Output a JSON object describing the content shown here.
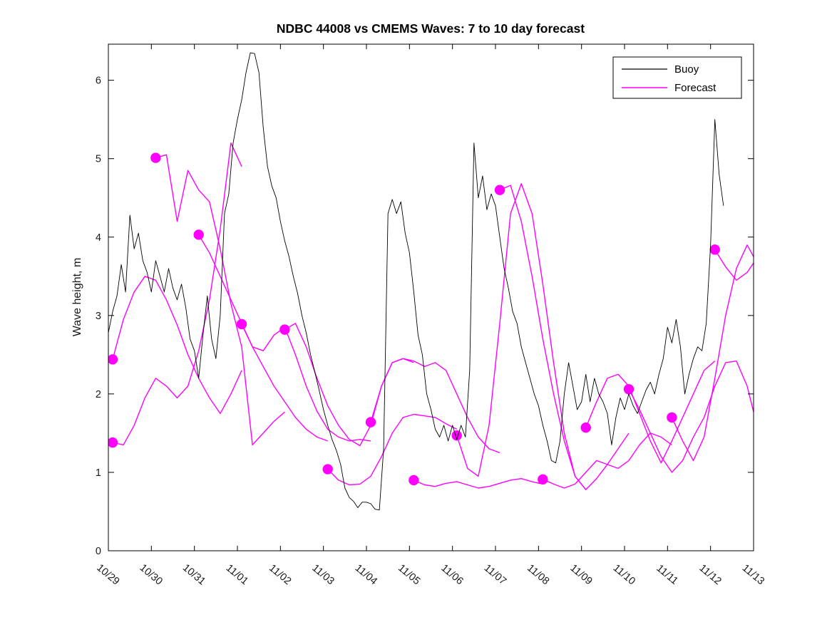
{
  "title": "NDBC 44008 vs CMEMS Waves: 7 to 10 day forecast",
  "axes": {
    "ylabel": "Wave height, m",
    "xtick_labels": [
      "10/29",
      "10/30",
      "10/31",
      "11/01",
      "11/02",
      "11/03",
      "11/04",
      "11/05",
      "11/06",
      "11/07",
      "11/08",
      "11/09",
      "11/10",
      "11/11",
      "11/12",
      "11/13"
    ],
    "ytick_labels": [
      "0",
      "1",
      "2",
      "3",
      "4",
      "5",
      "6"
    ]
  },
  "legend": {
    "entries": [
      {
        "label": "Buoy",
        "color": "#000000"
      },
      {
        "label": "Forecast",
        "color": "#ff00ff"
      }
    ],
    "position": "northeast"
  },
  "colors": {
    "buoy_line": "#000000",
    "forecast_line": "#ff00ff",
    "forecast_marker": "#ff00ff",
    "axis": "#000000",
    "background": "#ffffff"
  },
  "chart_data": {
    "type": "line",
    "title": "NDBC 44008 vs CMEMS Waves: 7 to 10 day forecast",
    "xlabel": "",
    "ylabel": "Wave height, m",
    "x_axis": {
      "unit": "date (MM/DD)",
      "tick_days": [
        0,
        1,
        2,
        3,
        4,
        5,
        6,
        7,
        8,
        9,
        10,
        11,
        12,
        13,
        14,
        15
      ],
      "tick_labels": [
        "10/29",
        "10/30",
        "10/31",
        "11/01",
        "11/02",
        "11/03",
        "11/04",
        "11/05",
        "11/06",
        "11/07",
        "11/08",
        "11/09",
        "11/10",
        "11/11",
        "11/12",
        "11/13"
      ],
      "xlim_days": [
        0,
        15.08
      ]
    },
    "ylim": [
      0,
      6.46
    ],
    "yticks": [
      0,
      1,
      2,
      3,
      4,
      5,
      6
    ],
    "grid": false,
    "legend_position": "northeast",
    "series_buoy": {
      "name": "Buoy",
      "color": "#000000",
      "t0": 0.0,
      "dt": 0.1,
      "values": [
        2.78,
        3.05,
        3.25,
        3.65,
        3.3,
        4.28,
        3.85,
        4.05,
        3.7,
        3.55,
        3.3,
        3.7,
        3.5,
        3.3,
        3.6,
        3.35,
        3.2,
        3.4,
        3.1,
        2.7,
        2.55,
        2.2,
        2.75,
        3.25,
        2.7,
        2.45,
        3.0,
        4.3,
        4.55,
        5.2,
        5.5,
        5.75,
        6.1,
        6.35,
        6.34,
        6.1,
        5.4,
        4.9,
        4.65,
        4.5,
        4.2,
        3.95,
        3.75,
        3.5,
        3.28,
        3.0,
        2.78,
        2.5,
        2.28,
        2.05,
        1.8,
        1.6,
        1.42,
        1.28,
        1.1,
        0.8,
        0.68,
        0.63,
        0.55,
        0.62,
        0.62,
        0.6,
        0.53,
        0.52,
        1.3,
        4.3,
        4.48,
        4.3,
        4.45,
        4.05,
        3.8,
        3.3,
        2.75,
        2.5,
        2.0,
        1.8,
        1.55,
        1.45,
        1.6,
        1.4,
        1.6,
        1.42,
        1.6,
        1.45,
        2.3,
        5.2,
        4.5,
        4.78,
        4.35,
        4.55,
        4.4,
        4.0,
        3.6,
        3.35,
        3.05,
        2.9,
        2.6,
        2.4,
        2.2,
        2.0,
        1.85,
        1.6,
        1.4,
        1.15,
        1.12,
        1.4,
        2.0,
        2.4,
        2.1,
        1.8,
        1.9,
        2.25,
        1.9,
        2.2,
        2.0,
        1.9,
        1.75,
        1.35,
        1.7,
        1.95,
        1.8,
        2.0,
        1.85,
        1.75,
        1.9,
        2.05,
        2.15,
        2.0,
        2.25,
        2.45,
        2.85,
        2.65,
        2.95,
        2.6,
        2.0,
        2.25,
        2.45,
        2.6,
        2.55,
        2.9,
        3.9,
        5.5,
        4.8,
        4.4
      ]
    },
    "forecast_runs": [
      {
        "start_label": "10/29",
        "start_day": 0.1,
        "dt": 0.25,
        "start_value": 2.44,
        "values": [
          2.44,
          2.95,
          3.3,
          3.5,
          3.45,
          3.2,
          2.88,
          2.5,
          2.2,
          1.95,
          1.75,
          2.0,
          2.3
        ]
      },
      {
        "start_label": "10/29",
        "start_day": 0.1,
        "dt": 0.25,
        "start_value": 1.38,
        "values": [
          1.38,
          1.35,
          1.6,
          1.95,
          2.2,
          2.1,
          1.95,
          2.1,
          2.55,
          3.2,
          4.1,
          5.2,
          4.9
        ]
      },
      {
        "start_label": "10/30",
        "start_day": 1.1,
        "dt": 0.25,
        "start_value": 5.01,
        "values": [
          5.01,
          5.05,
          4.2,
          4.85,
          4.6,
          4.45,
          3.85,
          3.15,
          2.6,
          1.35,
          1.5,
          1.65,
          1.77
        ]
      },
      {
        "start_label": "10/31",
        "start_day": 2.1,
        "dt": 0.25,
        "start_value": 4.03,
        "values": [
          4.03,
          3.8,
          3.5,
          3.2,
          2.9,
          2.6,
          2.35,
          2.1,
          1.9,
          1.7,
          1.55,
          1.45,
          1.4
        ]
      },
      {
        "start_label": "11/01",
        "start_day": 3.1,
        "dt": 0.25,
        "start_value": 2.89,
        "values": [
          2.89,
          2.6,
          2.55,
          2.75,
          2.85,
          2.5,
          2.1,
          1.78,
          1.55,
          1.45,
          1.4,
          1.42,
          1.4
        ]
      },
      {
        "start_label": "11/02",
        "start_day": 4.1,
        "dt": 0.25,
        "start_value": 2.82,
        "values": [
          2.82,
          2.9,
          2.6,
          2.2,
          1.85,
          1.6,
          1.42,
          1.34,
          1.6,
          2.1,
          2.4,
          2.45,
          2.4
        ]
      },
      {
        "start_label": "11/03",
        "start_day": 5.1,
        "dt": 0.25,
        "start_value": 1.04,
        "values": [
          1.04,
          0.9,
          0.84,
          0.85,
          0.95,
          1.2,
          1.5,
          1.7,
          1.74,
          1.72,
          1.7,
          1.62,
          1.55
        ]
      },
      {
        "start_label": "11/04",
        "start_day": 6.1,
        "dt": 0.25,
        "start_value": 1.64,
        "values": [
          1.64,
          2.1,
          2.4,
          2.45,
          2.42,
          2.35,
          2.4,
          2.3,
          2.0,
          1.7,
          1.45,
          1.3,
          1.25
        ]
      },
      {
        "start_label": "11/05",
        "start_day": 7.1,
        "dt": 0.25,
        "start_value": 0.9,
        "values": [
          0.9,
          0.84,
          0.82,
          0.86,
          0.88,
          0.84,
          0.8,
          0.82,
          0.86,
          0.9,
          0.92,
          0.88,
          0.85
        ]
      },
      {
        "start_label": "11/06",
        "start_day": 8.1,
        "dt": 0.25,
        "start_value": 1.47,
        "values": [
          1.47,
          1.05,
          0.95,
          1.6,
          2.9,
          4.3,
          4.68,
          4.3,
          3.4,
          2.4,
          1.5,
          0.95,
          0.78
        ]
      },
      {
        "start_label": "11/07",
        "start_day": 9.1,
        "dt": 0.25,
        "start_value": 4.6,
        "values": [
          4.6,
          4.66,
          4.2,
          3.5,
          2.7,
          2.0,
          1.4,
          0.95,
          0.78,
          0.92,
          1.1,
          1.3,
          1.5
        ]
      },
      {
        "start_label": "11/08",
        "start_day": 10.1,
        "dt": 0.25,
        "start_value": 0.91,
        "values": [
          0.91,
          0.85,
          0.8,
          0.85,
          1.0,
          1.15,
          1.1,
          1.05,
          1.15,
          1.35,
          1.5,
          1.45,
          1.35
        ]
      },
      {
        "start_label": "11/09",
        "start_day": 11.1,
        "dt": 0.25,
        "start_value": 1.57,
        "values": [
          1.57,
          1.9,
          2.2,
          2.25,
          2.1,
          1.75,
          1.4,
          1.12,
          1.4,
          1.7,
          2.0,
          2.3,
          2.42
        ]
      },
      {
        "start_label": "11/10",
        "start_day": 12.1,
        "dt": 0.25,
        "start_value": 2.06,
        "values": [
          2.06,
          1.8,
          1.5,
          1.2,
          1.0,
          1.15,
          1.45,
          1.7,
          2.1,
          2.4,
          2.42,
          2.1,
          1.55
        ]
      },
      {
        "start_label": "11/11",
        "start_day": 13.1,
        "dt": 0.25,
        "start_value": 1.7,
        "values": [
          1.7,
          1.4,
          1.15,
          1.45,
          2.2,
          3.0,
          3.6,
          3.9,
          3.65,
          3.35,
          3.2,
          3.35,
          3.5
        ]
      },
      {
        "start_label": "11/12",
        "start_day": 14.1,
        "dt": 0.25,
        "start_value": 3.84,
        "values": [
          3.84,
          3.62,
          3.45,
          3.55,
          3.75
        ]
      }
    ]
  }
}
